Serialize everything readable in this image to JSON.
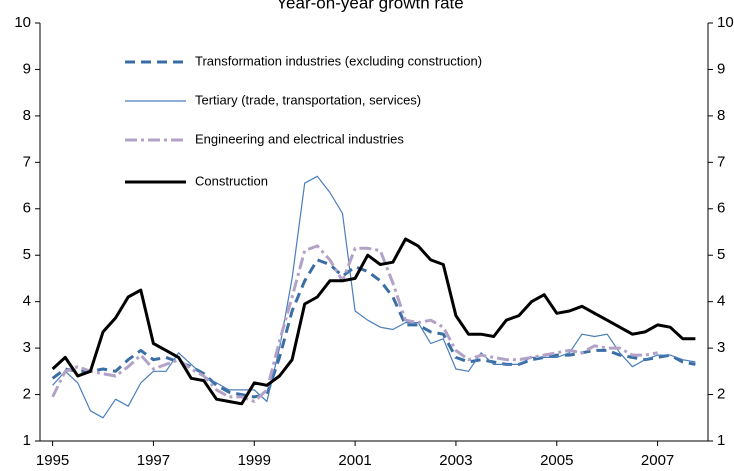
{
  "chart_data": {
    "type": "line",
    "title": "Year-on-year growth rate",
    "x": [
      1995,
      1995.25,
      1995.5,
      1995.75,
      1996,
      1996.25,
      1996.5,
      1996.75,
      1997,
      1997.25,
      1997.5,
      1997.75,
      1998,
      1998.25,
      1998.5,
      1998.75,
      1999,
      1999.25,
      1999.5,
      1999.75,
      2000,
      2000.25,
      2000.5,
      2000.75,
      2001,
      2001.25,
      2001.5,
      2001.75,
      2002,
      2002.25,
      2002.5,
      2002.75,
      2003,
      2003.25,
      2003.5,
      2003.75,
      2004,
      2004.25,
      2004.5,
      2004.75,
      2005,
      2005.25,
      2005.5,
      2005.75,
      2006,
      2006.25,
      2006.5,
      2006.75,
      2007,
      2007.25,
      2007.5,
      2007.75
    ],
    "series": [
      {
        "name": "Transformation industries (excluding construction)",
        "color": "#3a6ea5",
        "width": 3,
        "dash": "10 6",
        "values": [
          2.35,
          2.55,
          2.5,
          2.5,
          2.55,
          2.5,
          2.75,
          2.95,
          2.75,
          2.8,
          2.7,
          2.6,
          2.45,
          2.2,
          2.05,
          2.0,
          1.95,
          2.0,
          2.8,
          3.8,
          4.45,
          4.9,
          4.8,
          4.55,
          4.75,
          4.65,
          4.45,
          4.1,
          3.5,
          3.5,
          3.35,
          3.3,
          2.8,
          2.7,
          2.75,
          2.7,
          2.65,
          2.65,
          2.75,
          2.8,
          2.85,
          2.85,
          2.9,
          2.95,
          2.95,
          2.85,
          2.8,
          2.75,
          2.8,
          2.85,
          2.7,
          2.65
        ]
      },
      {
        "name": "Tertiary (trade, transportation, services)",
        "color": "#4a7ebb",
        "width": 1.2,
        "dash": "none",
        "values": [
          2.2,
          2.5,
          2.25,
          1.65,
          1.5,
          1.9,
          1.75,
          2.25,
          2.5,
          2.5,
          2.9,
          2.65,
          2.4,
          2.25,
          2.1,
          2.1,
          2.1,
          1.85,
          3.0,
          4.5,
          6.55,
          6.7,
          6.35,
          5.9,
          3.8,
          3.6,
          3.45,
          3.4,
          3.55,
          3.55,
          3.1,
          3.2,
          2.55,
          2.5,
          2.9,
          2.65,
          2.65,
          2.65,
          2.8,
          2.8,
          2.8,
          2.9,
          3.3,
          3.25,
          3.3,
          2.9,
          2.6,
          2.75,
          2.85,
          2.85,
          2.75,
          2.7
        ]
      },
      {
        "name": "Engineering and electrical industries",
        "color": "#b3a2c7",
        "width": 3,
        "dash": "12 4 3 4",
        "values": [
          1.95,
          2.5,
          2.6,
          2.5,
          2.45,
          2.4,
          2.6,
          2.85,
          2.55,
          2.65,
          2.75,
          2.55,
          2.4,
          2.1,
          1.95,
          1.95,
          1.85,
          2.1,
          3.15,
          4.1,
          5.1,
          5.2,
          4.9,
          4.45,
          5.15,
          5.15,
          5.1,
          4.4,
          3.6,
          3.55,
          3.6,
          3.45,
          2.95,
          2.75,
          2.85,
          2.8,
          2.75,
          2.75,
          2.8,
          2.85,
          2.9,
          2.95,
          2.9,
          3.05,
          3.0,
          3.0,
          2.85,
          2.85,
          2.9,
          null,
          null,
          null
        ]
      },
      {
        "name": "Construction",
        "color": "#000000",
        "width": 3,
        "dash": "none",
        "values": [
          2.55,
          2.8,
          2.4,
          2.5,
          3.35,
          3.65,
          4.1,
          4.25,
          3.1,
          2.95,
          2.8,
          2.35,
          2.3,
          1.9,
          1.85,
          1.8,
          2.25,
          2.2,
          2.4,
          2.75,
          3.95,
          4.1,
          4.45,
          4.45,
          4.5,
          5.0,
          4.8,
          4.85,
          5.35,
          5.2,
          4.9,
          4.8,
          3.7,
          3.3,
          3.3,
          3.25,
          3.6,
          3.7,
          4.0,
          4.15,
          3.75,
          3.8,
          3.9,
          3.75,
          3.6,
          3.45,
          3.3,
          3.35,
          3.5,
          3.45,
          3.2,
          3.2
        ]
      }
    ],
    "xlim": [
      1994.75,
      2008
    ],
    "xticks": [
      1995,
      1997,
      1999,
      2001,
      2003,
      2005,
      2007
    ],
    "ylim": [
      1,
      10
    ],
    "yticks": [
      1,
      2,
      3,
      4,
      5,
      6,
      7,
      8,
      9,
      10
    ],
    "y2lim": [
      1,
      10
    ],
    "y2ticks": [
      1,
      2,
      3,
      4,
      5,
      6,
      7,
      8,
      9,
      10
    ],
    "legend": "upper left"
  }
}
